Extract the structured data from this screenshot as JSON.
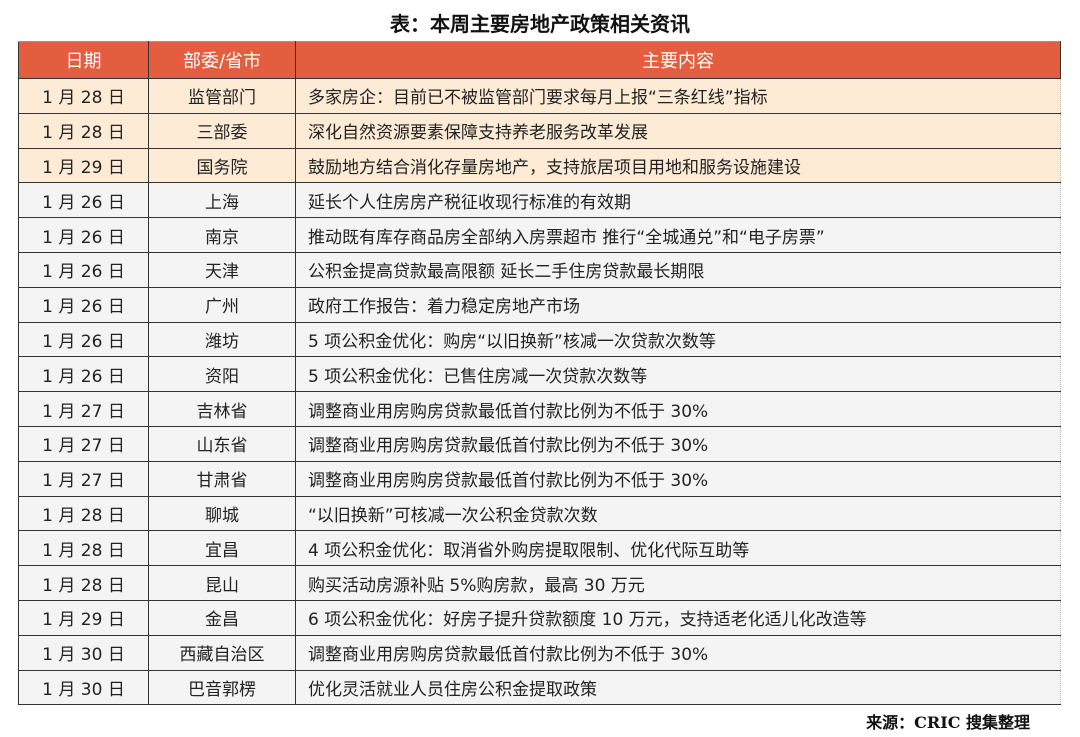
{
  "title": "表：本周主要房地产政策相关资讯",
  "headers": [
    "日期",
    "部委/省市",
    "主要内容"
  ],
  "colors": {
    "header": "#e35d3f",
    "highlight_row": "#fdebd6",
    "row": "#f4f4f4"
  },
  "rows": [
    {
      "date": "1 月 28 日",
      "org": "监管部门",
      "content": "多家房企：目前已不被监管部门要求每月上报“三条红线”指标",
      "highlight": true
    },
    {
      "date": "1 月 28 日",
      "org": "三部委",
      "content": "深化自然资源要素保障支持养老服务改革发展",
      "highlight": true
    },
    {
      "date": "1 月 29 日",
      "org": "国务院",
      "content": "鼓励地方结合消化存量房地产，支持旅居项目用地和服务设施建设",
      "highlight": true
    },
    {
      "date": "1 月 26 日",
      "org": "上海",
      "content": "延长个人住房房产税征收现行标准的有效期"
    },
    {
      "date": "1 月 26 日",
      "org": "南京",
      "content": "推动既有库存商品房全部纳入房票超市  推行“全城通兑”和“电子房票”"
    },
    {
      "date": "1 月 26 日",
      "org": "天津",
      "content": "公积金提高贷款最高限额  延长二手住房贷款最长期限"
    },
    {
      "date": "1 月 26 日",
      "org": "广州",
      "content": "政府工作报告：着力稳定房地产市场"
    },
    {
      "date": "1 月 26 日",
      "org": "潍坊",
      "content": "5 项公积金优化：购房“以旧换新”核减一次贷款次数等"
    },
    {
      "date": "1 月 26 日",
      "org": "资阳",
      "content": "5 项公积金优化：已售住房减一次贷款次数等"
    },
    {
      "date": "1 月 27 日",
      "org": "吉林省",
      "content": "调整商业用房购房贷款最低首付款比例为不低于 30%"
    },
    {
      "date": "1 月 27 日",
      "org": "山东省",
      "content": "调整商业用房购房贷款最低首付款比例为不低于 30%"
    },
    {
      "date": "1 月 27 日",
      "org": "甘肃省",
      "content": "调整商业用房购房贷款最低首付款比例为不低于 30%"
    },
    {
      "date": "1 月 28 日",
      "org": "聊城",
      "content": "“以旧换新”可核减一次公积金贷款次数"
    },
    {
      "date": "1 月 28 日",
      "org": "宜昌",
      "content": "4 项公积金优化：取消省外购房提取限制、优化代际互助等"
    },
    {
      "date": "1 月 28 日",
      "org": "昆山",
      "content": "购买活动房源补贴 5%购房款，最高 30 万元"
    },
    {
      "date": "1 月 29 日",
      "org": "金昌",
      "content": "6 项公积金优化：好房子提升贷款额度 10 万元，支持适老化适儿化改造等"
    },
    {
      "date": "1 月 30 日",
      "org": "西藏自治区",
      "content": "调整商业用房购房贷款最低首付款比例为不低于 30%"
    },
    {
      "date": "1 月 30 日",
      "org": "巴音郭楞",
      "content": "优化灵活就业人员住房公积金提取政策"
    }
  ],
  "source": "来源：CRIC 搜集整理"
}
